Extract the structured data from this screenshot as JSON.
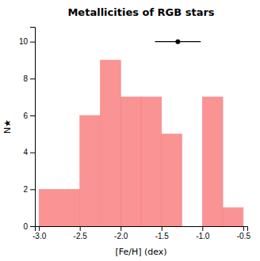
{
  "chart_data": {
    "type": "histogram",
    "title": "Metallicities of RGB stars",
    "xlabel": "[Fe/H] (dex)",
    "ylabel": "N★",
    "bins": [
      -3.0,
      -2.5,
      -2.25,
      -2.0,
      -1.75,
      -1.5,
      -1.25,
      -1.0,
      -0.75,
      -0.5
    ],
    "values": [
      2,
      6,
      9,
      7,
      7,
      5,
      0,
      7,
      1
    ],
    "color": "#F98080",
    "xlim": [
      -3.05,
      -0.45
    ],
    "ylim": [
      0,
      10.8
    ],
    "xticks": [
      {
        "value": -3.0,
        "label": "-3.0"
      },
      -2.5,
      {
        "value": -2.0,
        "label": "-2.0"
      },
      -1.5,
      {
        "value": -1.0,
        "label": "-1.0"
      },
      -0.5
    ],
    "yticks": [
      0,
      2,
      4,
      6,
      8,
      10
    ],
    "errorbar": {
      "x": -1.3,
      "y": 10.0,
      "xerr": 0.28
    }
  }
}
